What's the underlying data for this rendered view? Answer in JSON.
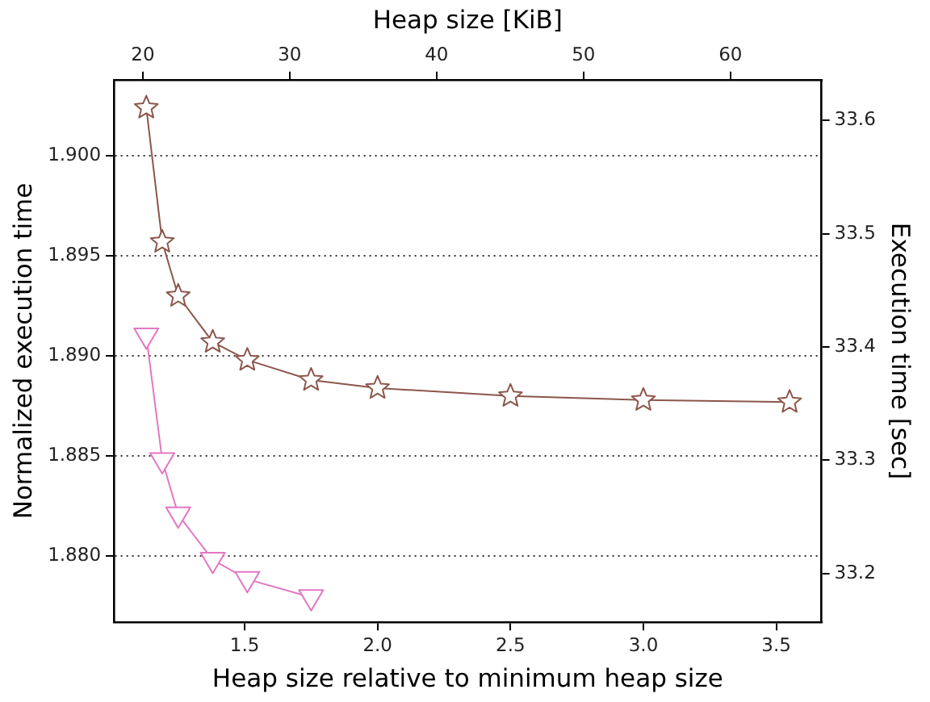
{
  "chart_data": {
    "type": "line",
    "xlabel": "Heap size relative to minimum heap size",
    "x2label": "Heap size [KiB]",
    "ylabel": "Normalized execution time",
    "y2label": "Execution time [sec]",
    "xlim": [
      1.008,
      3.67
    ],
    "xticks": [
      1.5,
      {
        "value": 2,
        "label": "2.0"
      },
      2.5,
      {
        "value": 3,
        "label": "3.0"
      },
      3.5
    ],
    "x2lim": [
      18.03,
      66.2
    ],
    "x2ticks": [
      20,
      30,
      40,
      50,
      60
    ],
    "ylim": [
      1.8767,
      1.9038
    ],
    "yticks": [
      {
        "value": 1.88,
        "label": "1.880"
      },
      1.885,
      {
        "value": 1.89,
        "label": "1.890"
      },
      1.895,
      {
        "value": 1.9,
        "label": "1.900"
      }
    ],
    "y2lim": [
      33.157,
      33.636
    ],
    "y2ticks": [
      33.2,
      33.3,
      33.4,
      33.5,
      33.6
    ],
    "grid": "y",
    "series": [
      {
        "color": "#8c564b",
        "marker": "star",
        "x": [
          1.13,
          1.19,
          1.25,
          1.38,
          1.51,
          1.75,
          2.0,
          2.5,
          3.0,
          3.55
        ],
        "values": [
          1.9024,
          1.8957,
          1.893,
          1.8907,
          1.8898,
          1.8888,
          1.8884,
          1.888,
          1.8878,
          1.8877
        ]
      },
      {
        "color": "#e377c2",
        "marker": "triangle",
        "axis": "y2",
        "x": [
          1.13,
          1.19,
          1.25,
          1.38,
          1.51,
          1.75
        ],
        "values": [
          33.41,
          33.3,
          33.252,
          33.212,
          33.195,
          33.179
        ]
      }
    ]
  }
}
